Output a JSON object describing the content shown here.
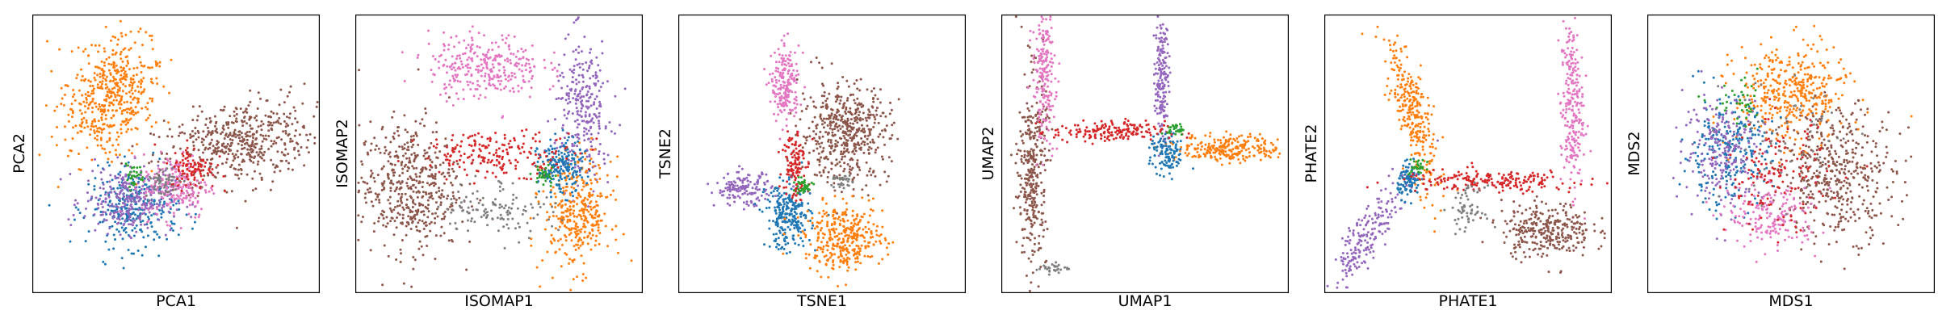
{
  "colors": {
    "blue": "#1f77b4",
    "orange": "#ff7f0e",
    "green": "#2ca02c",
    "red": "#d62728",
    "purple": "#9467bd",
    "brown": "#8c564b",
    "pink": "#e377c2",
    "gray": "#7f7f7f"
  },
  "chart_data": [
    {
      "type": "scatter",
      "xlabel": "PCA1",
      "ylabel": "PCA2",
      "title": "",
      "grid": false,
      "ticks": false,
      "xlim": [
        0,
        1
      ],
      "ylim": [
        0,
        1
      ],
      "clusters": [
        {
          "color": "orange",
          "n": 500,
          "cx": 0.27,
          "cy": 0.71,
          "sx": 0.08,
          "sy": 0.11,
          "rot": -0.3
        },
        {
          "color": "brown",
          "n": 500,
          "cx": 0.72,
          "cy": 0.54,
          "sx": 0.14,
          "sy": 0.075,
          "rot": 0.25
        },
        {
          "color": "blue",
          "n": 300,
          "cx": 0.35,
          "cy": 0.3,
          "sx": 0.08,
          "sy": 0.07,
          "rot": 0.0
        },
        {
          "color": "purple",
          "n": 280,
          "cx": 0.33,
          "cy": 0.33,
          "sx": 0.08,
          "sy": 0.06,
          "rot": 0.0
        },
        {
          "color": "pink",
          "n": 200,
          "cx": 0.5,
          "cy": 0.38,
          "sx": 0.06,
          "sy": 0.06,
          "rot": 0.0
        },
        {
          "color": "red",
          "n": 100,
          "cx": 0.56,
          "cy": 0.45,
          "sx": 0.04,
          "sy": 0.04,
          "rot": 0.0
        },
        {
          "color": "green",
          "n": 30,
          "cx": 0.35,
          "cy": 0.42,
          "sx": 0.02,
          "sy": 0.02,
          "rot": 0.0
        },
        {
          "color": "gray",
          "n": 50,
          "cx": 0.45,
          "cy": 0.4,
          "sx": 0.03,
          "sy": 0.03,
          "rot": 0.0
        }
      ]
    },
    {
      "type": "scatter",
      "xlabel": "ISOMAP1",
      "ylabel": "ISOMAP2",
      "title": "",
      "grid": false,
      "ticks": false,
      "xlim": [
        0,
        1
      ],
      "ylim": [
        0,
        1
      ],
      "clusters": [
        {
          "color": "brown",
          "n": 500,
          "cx": 0.18,
          "cy": 0.38,
          "sx": 0.09,
          "sy": 0.12,
          "rot": 0.0
        },
        {
          "color": "pink",
          "n": 300,
          "cx": 0.45,
          "cy": 0.82,
          "sx": 0.1,
          "sy": 0.06,
          "rot": 0.0
        },
        {
          "color": "purple",
          "n": 280,
          "cx": 0.8,
          "cy": 0.66,
          "sx": 0.05,
          "sy": 0.13,
          "rot": 0.0
        },
        {
          "color": "orange",
          "n": 350,
          "cx": 0.78,
          "cy": 0.28,
          "sx": 0.06,
          "sy": 0.1,
          "rot": 0.0
        },
        {
          "color": "blue",
          "n": 200,
          "cx": 0.72,
          "cy": 0.45,
          "sx": 0.04,
          "sy": 0.05,
          "rot": 0.0
        },
        {
          "color": "red",
          "n": 200,
          "cx": 0.5,
          "cy": 0.5,
          "sx": 0.14,
          "sy": 0.04,
          "rot": 0.0
        },
        {
          "color": "gray",
          "n": 120,
          "cx": 0.5,
          "cy": 0.3,
          "sx": 0.1,
          "sy": 0.05,
          "rot": 0.0
        },
        {
          "color": "green",
          "n": 30,
          "cx": 0.66,
          "cy": 0.42,
          "sx": 0.02,
          "sy": 0.02,
          "rot": 0.0
        }
      ]
    },
    {
      "type": "scatter",
      "xlabel": "TSNE1",
      "ylabel": "TSNE2",
      "title": "",
      "grid": false,
      "ticks": false,
      "xlim": [
        0,
        1
      ],
      "ylim": [
        0,
        1
      ],
      "clusters": [
        {
          "color": "brown",
          "n": 500,
          "cx": 0.58,
          "cy": 0.58,
          "sx": 0.08,
          "sy": 0.09,
          "rot": 0.0
        },
        {
          "color": "pink",
          "n": 200,
          "cx": 0.37,
          "cy": 0.75,
          "sx": 0.025,
          "sy": 0.07,
          "rot": 0.0
        },
        {
          "color": "purple",
          "n": 150,
          "cx": 0.22,
          "cy": 0.37,
          "sx": 0.05,
          "sy": 0.03,
          "rot": 0.0
        },
        {
          "color": "blue",
          "n": 250,
          "cx": 0.38,
          "cy": 0.27,
          "sx": 0.04,
          "sy": 0.06,
          "rot": 0.0
        },
        {
          "color": "orange",
          "n": 350,
          "cx": 0.58,
          "cy": 0.19,
          "sx": 0.07,
          "sy": 0.06,
          "rot": 0.0
        },
        {
          "color": "red",
          "n": 120,
          "cx": 0.4,
          "cy": 0.47,
          "sx": 0.02,
          "sy": 0.07,
          "rot": 0.0
        },
        {
          "color": "green",
          "n": 40,
          "cx": 0.43,
          "cy": 0.38,
          "sx": 0.02,
          "sy": 0.015,
          "rot": 0.0
        },
        {
          "color": "gray",
          "n": 30,
          "cx": 0.57,
          "cy": 0.4,
          "sx": 0.02,
          "sy": 0.015,
          "rot": 0.0
        }
      ]
    },
    {
      "type": "scatter",
      "xlabel": "UMAP1",
      "ylabel": "UMAP2",
      "title": "",
      "grid": false,
      "ticks": false,
      "xlim": [
        0,
        1
      ],
      "ylim": [
        0,
        1
      ],
      "clusters": [
        {
          "color": "brown",
          "n": 350,
          "cx": 0.1,
          "cy": 0.43,
          "sx": 0.025,
          "sy": 0.18,
          "rot": 0.0
        },
        {
          "color": "pink",
          "n": 200,
          "cx": 0.14,
          "cy": 0.79,
          "sx": 0.02,
          "sy": 0.12,
          "rot": 0.0
        },
        {
          "color": "purple",
          "n": 180,
          "cx": 0.56,
          "cy": 0.8,
          "sx": 0.012,
          "sy": 0.12,
          "rot": 0.0
        },
        {
          "color": "orange",
          "n": 250,
          "cx": 0.8,
          "cy": 0.52,
          "sx": 0.09,
          "sy": 0.025,
          "rot": 0.0
        },
        {
          "color": "blue",
          "n": 120,
          "cx": 0.58,
          "cy": 0.5,
          "sx": 0.03,
          "sy": 0.04,
          "rot": 0.0
        },
        {
          "color": "red",
          "n": 180,
          "cx": 0.37,
          "cy": 0.58,
          "sx": 0.1,
          "sy": 0.02,
          "rot": 0.0
        },
        {
          "color": "green",
          "n": 30,
          "cx": 0.61,
          "cy": 0.59,
          "sx": 0.015,
          "sy": 0.01,
          "rot": 0.0
        },
        {
          "color": "gray",
          "n": 30,
          "cx": 0.17,
          "cy": 0.08,
          "sx": 0.03,
          "sy": 0.01,
          "rot": 0.0
        }
      ]
    },
    {
      "type": "scatter",
      "xlabel": "PHATE1",
      "ylabel": "PHATE2",
      "title": "",
      "grid": false,
      "ticks": false,
      "xlim": [
        0,
        1
      ],
      "ylim": [
        0,
        1
      ],
      "clusters": [
        {
          "color": "orange",
          "n": 300,
          "cx": 0.3,
          "cy": 0.66,
          "sx": 0.03,
          "sy": 0.15,
          "rot": 0.25
        },
        {
          "color": "pink",
          "n": 250,
          "cx": 0.87,
          "cy": 0.67,
          "sx": 0.02,
          "sy": 0.16,
          "rot": 0.0
        },
        {
          "color": "purple",
          "n": 200,
          "cx": 0.14,
          "cy": 0.2,
          "sx": 0.03,
          "sy": 0.12,
          "rot": -0.6
        },
        {
          "color": "brown",
          "n": 300,
          "cx": 0.78,
          "cy": 0.22,
          "sx": 0.08,
          "sy": 0.05,
          "rot": 0.0
        },
        {
          "color": "blue",
          "n": 100,
          "cx": 0.29,
          "cy": 0.4,
          "sx": 0.02,
          "sy": 0.03,
          "rot": 0.0
        },
        {
          "color": "red",
          "n": 200,
          "cx": 0.58,
          "cy": 0.4,
          "sx": 0.16,
          "sy": 0.02,
          "rot": 0.0
        },
        {
          "color": "gray",
          "n": 60,
          "cx": 0.5,
          "cy": 0.3,
          "sx": 0.03,
          "sy": 0.04,
          "rot": 0.0
        },
        {
          "color": "green",
          "n": 30,
          "cx": 0.32,
          "cy": 0.45,
          "sx": 0.015,
          "sy": 0.015,
          "rot": 0.0
        }
      ]
    },
    {
      "type": "scatter",
      "xlabel": "MDS1",
      "ylabel": "MDS2",
      "title": "",
      "grid": false,
      "ticks": false,
      "xlim": [
        0,
        1
      ],
      "ylim": [
        0,
        1
      ],
      "clusters": [
        {
          "color": "orange",
          "n": 400,
          "cx": 0.5,
          "cy": 0.72,
          "sx": 0.1,
          "sy": 0.09,
          "rot": 0.0
        },
        {
          "color": "brown",
          "n": 450,
          "cx": 0.67,
          "cy": 0.43,
          "sx": 0.1,
          "sy": 0.12,
          "rot": 0.0
        },
        {
          "color": "blue",
          "n": 250,
          "cx": 0.27,
          "cy": 0.5,
          "sx": 0.08,
          "sy": 0.1,
          "rot": 0.0
        },
        {
          "color": "purple",
          "n": 220,
          "cx": 0.26,
          "cy": 0.52,
          "sx": 0.07,
          "sy": 0.1,
          "rot": 0.0
        },
        {
          "color": "pink",
          "n": 180,
          "cx": 0.44,
          "cy": 0.27,
          "sx": 0.08,
          "sy": 0.06,
          "rot": 0.0
        },
        {
          "color": "red",
          "n": 150,
          "cx": 0.45,
          "cy": 0.42,
          "sx": 0.09,
          "sy": 0.1,
          "rot": 0.0
        },
        {
          "color": "green",
          "n": 40,
          "cx": 0.32,
          "cy": 0.68,
          "sx": 0.05,
          "sy": 0.04,
          "rot": 0.0
        },
        {
          "color": "gray",
          "n": 60,
          "cx": 0.5,
          "cy": 0.55,
          "sx": 0.12,
          "sy": 0.12,
          "rot": 0.0
        }
      ]
    }
  ]
}
